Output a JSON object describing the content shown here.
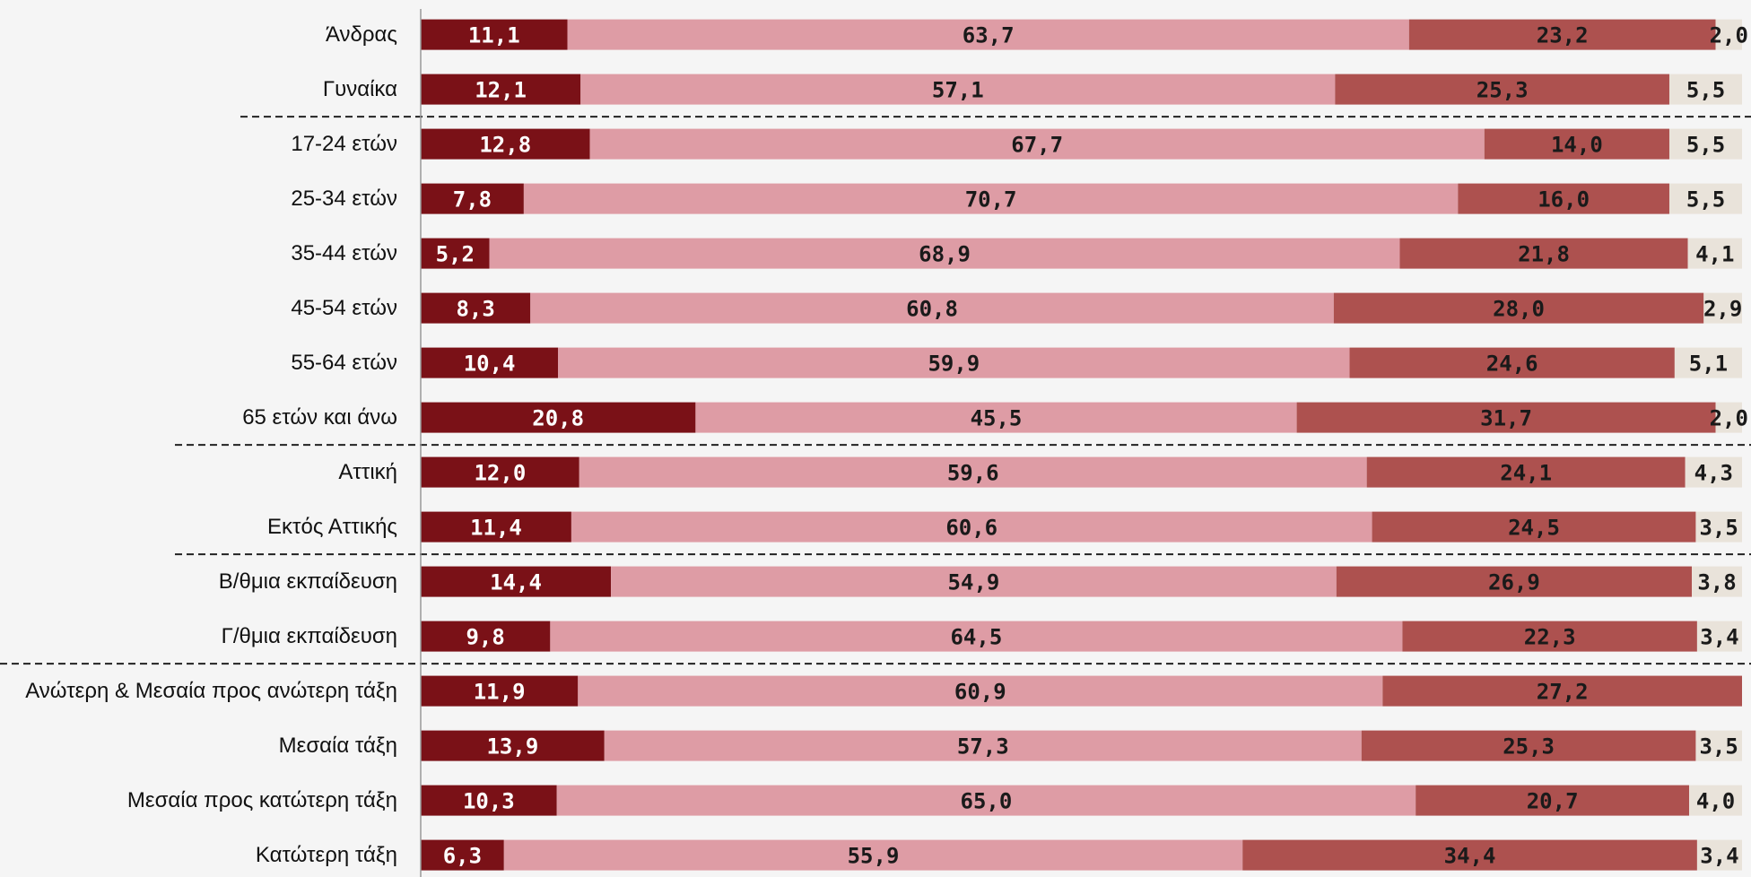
{
  "chart_data": {
    "type": "stacked-bar-horizontal",
    "categories": [
      "Άνδρας",
      "Γυναίκα",
      "17-24 ετών",
      "25-34 ετών",
      "35-44 ετών",
      "45-54 ετών",
      "55-64 ετών",
      "65 ετών και άνω",
      "Αττική",
      "Εκτός Αττικής",
      "Β/θμια εκπαίδευση",
      "Γ/θμια εκπαίδευση",
      "Ανώτερη & Μεσαία προς ανώτερη τάξη",
      "Μεσαία τάξη",
      "Μεσαία προς κατώτερη τάξη",
      "Κατώτερη τάξη"
    ],
    "series": [
      {
        "color": "#7a1117",
        "values": [
          11.1,
          12.1,
          12.8,
          7.8,
          5.2,
          8.3,
          10.4,
          20.8,
          12.0,
          11.4,
          14.4,
          9.8,
          11.9,
          13.9,
          10.3,
          6.3
        ],
        "value_labels": [
          "11,1",
          "12,1",
          "12,8",
          "7,8",
          "5,2",
          "8,3",
          "10,4",
          "20,8",
          "12,0",
          "11,4",
          "14,4",
          "9,8",
          "11,9",
          "13,9",
          "10,3",
          "6,3"
        ]
      },
      {
        "color": "#de9ca5",
        "values": [
          63.7,
          57.1,
          67.7,
          70.7,
          68.9,
          60.8,
          59.9,
          45.5,
          59.6,
          60.6,
          54.9,
          64.5,
          60.9,
          57.3,
          65.0,
          55.9
        ],
        "value_labels": [
          "63,7",
          "57,1",
          "67,7",
          "70,7",
          "68,9",
          "60,8",
          "59,9",
          "45,5",
          "59,6",
          "60,6",
          "54,9",
          "64,5",
          "60,9",
          "57,3",
          "65,0",
          "55,9"
        ]
      },
      {
        "color": "#ad514f",
        "values": [
          23.2,
          25.3,
          14.0,
          16.0,
          21.8,
          28.0,
          24.6,
          31.7,
          24.1,
          24.5,
          26.9,
          22.3,
          27.2,
          25.3,
          20.7,
          34.4
        ],
        "value_labels": [
          "23,2",
          "25,3",
          "14,0",
          "16,0",
          "21,8",
          "28,0",
          "24,6",
          "31,7",
          "24,1",
          "24,5",
          "26,9",
          "22,3",
          "27,2",
          "25,3",
          "20,7",
          "34,4"
        ]
      },
      {
        "color": "#e9e3da",
        "values": [
          2.0,
          5.5,
          5.5,
          5.5,
          4.1,
          2.9,
          5.1,
          2.0,
          4.3,
          3.5,
          3.8,
          3.4,
          null,
          3.5,
          4.0,
          3.4
        ],
        "value_labels": [
          "2,0",
          "5,5",
          "5,5",
          "5,5",
          "4,1",
          "2,9",
          "5,1",
          "2,0",
          "4,3",
          "3,5",
          "3,8",
          "3,4",
          null,
          "3,5",
          "4,0",
          "3,4"
        ]
      }
    ]
  }
}
